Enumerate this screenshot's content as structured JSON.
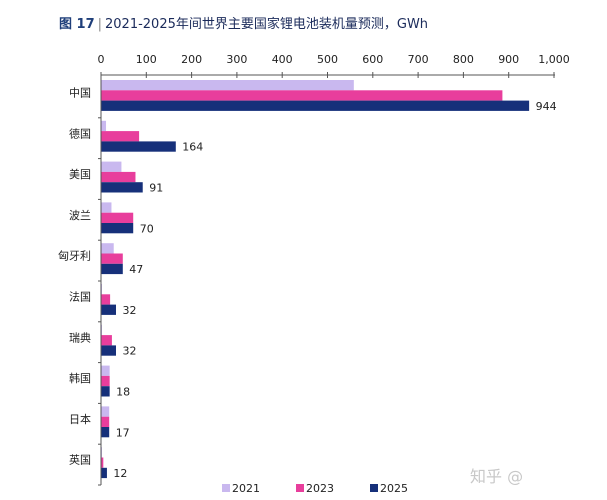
{
  "chart_data": {
    "type": "bar",
    "orientation": "horizontal",
    "title_prefix": "图 17",
    "title": "2021-2025年间世界主要国家锂电池装机量预测，GWh",
    "categories": [
      "中国",
      "德国",
      "美国",
      "波兰",
      "匈牙利",
      "法国",
      "瑞典",
      "韩国",
      "日本",
      "英国"
    ],
    "series": [
      {
        "name": "2021",
        "color": "#c9b8ef",
        "values": [
          557,
          10,
          44,
          22,
          27,
          1,
          1,
          18,
          17,
          1
        ]
      },
      {
        "name": "2023",
        "color": "#e83e9c",
        "values": [
          885,
          83,
          75,
          70,
          47,
          19,
          23,
          18,
          17,
          4
        ]
      },
      {
        "name": "2025",
        "color": "#16307a",
        "values": [
          944,
          164,
          91,
          70,
          47,
          32,
          32,
          18,
          17,
          12
        ]
      }
    ],
    "data_labels_series": "2025",
    "xlim": [
      0,
      1000
    ],
    "xticks": [
      "0",
      "100",
      "200",
      "300",
      "400",
      "500",
      "600",
      "700",
      "800",
      "900",
      "1,000"
    ],
    "axis_position": "top",
    "grid": false,
    "legend": "bottom"
  },
  "watermark": "知乎 @"
}
